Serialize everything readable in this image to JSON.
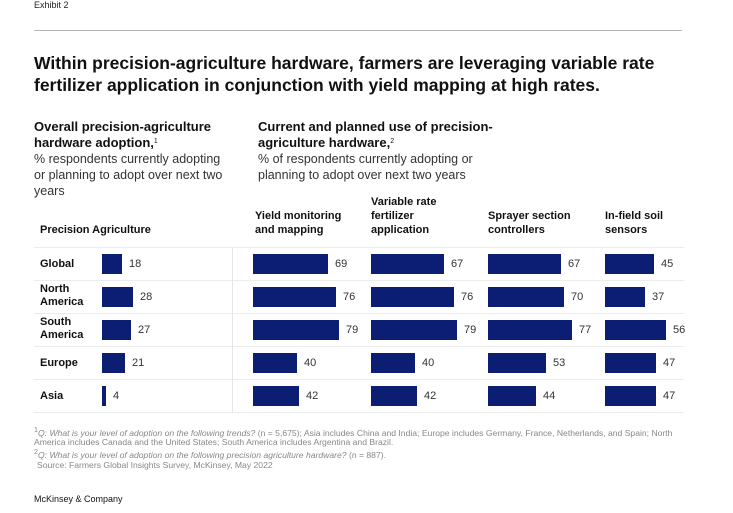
{
  "exhibit_label": "Exhibit 2",
  "title": "Within precision-agriculture hardware, farmers are leveraging variable rate fertilizer application in conjunction with yield mapping at high rates.",
  "left_panel": {
    "heading": "Overall precision-agriculture hardware adoption,",
    "heading_footnote": "1",
    "description": "% respondents currently adopting or planning to adopt over next two years"
  },
  "right_panel": {
    "heading": "Current and planned use of precision-agriculture hardware,",
    "heading_footnote": "2",
    "description": "% of respondents currently adopting or planning to adopt over next two years"
  },
  "footnotes": {
    "note1_marker": "1",
    "note1_question": "Q: What is your level of adoption on the following trends?",
    "note1_rest": " (n = 5,675); Asia includes China and India; Europe includes Germany, France, Netherlands, and Spain; North America includes Canada and the United States; South America includes Argentina and Brazil.",
    "note2_marker": "2",
    "note2_question": "Q: What is your level of adoption on the following precision agriculture hardware?",
    "note2_rest": " (n = 887).",
    "source": "Source: Farmers Global Insights Survey, McKinsey, May 2022"
  },
  "brand": "McKinsey & Company",
  "colors": {
    "bar": "#0c1e74"
  },
  "chart_data": {
    "type": "bar",
    "orientation": "horizontal",
    "title": "Within precision-agriculture hardware, farmers are leveraging variable rate fertilizer application in conjunction with yield mapping at high rates.",
    "unit": "% respondents",
    "categories": [
      "Global",
      "North America",
      "South America",
      "Europe",
      "Asia"
    ],
    "series": [
      {
        "name": "Precision Agriculture",
        "values": [
          18,
          28,
          27,
          21,
          4
        ]
      },
      {
        "name": "Yield monitoring and mapping",
        "values": [
          69,
          76,
          79,
          40,
          42
        ]
      },
      {
        "name": "Variable rate fertilizer application",
        "values": [
          67,
          76,
          79,
          40,
          42
        ]
      },
      {
        "name": "Sprayer section controllers",
        "values": [
          67,
          70,
          77,
          53,
          44
        ]
      },
      {
        "name": "In-field soil sensors",
        "values": [
          45,
          37,
          56,
          47,
          47
        ]
      }
    ],
    "xlim": [
      0,
      100
    ],
    "grid": false,
    "legend": "none"
  }
}
